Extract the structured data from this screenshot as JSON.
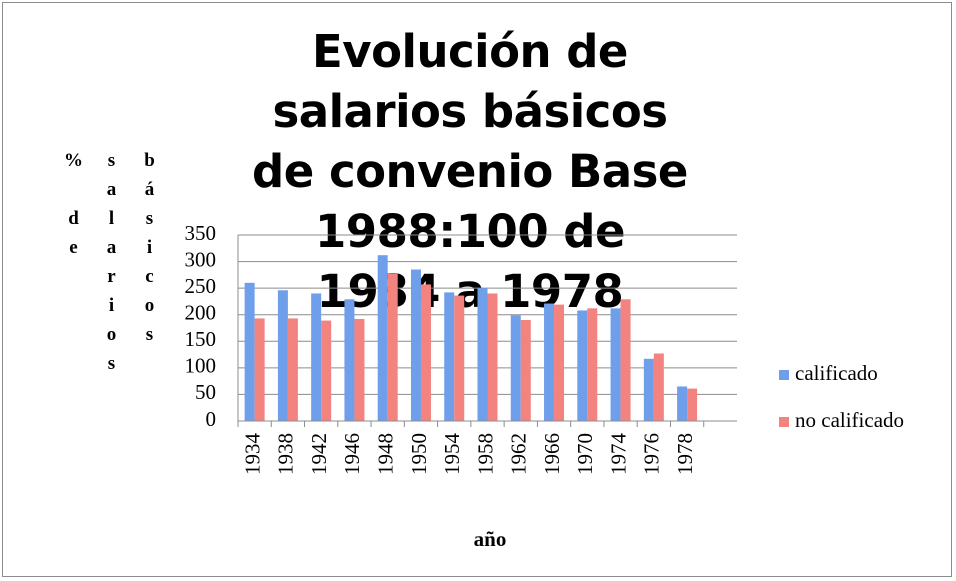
{
  "chart_data": {
    "type": "bar",
    "title": "Evolución de salarios básicos de convenio Base 1988:100 de 1934 a 1978",
    "y_label": "% de salarios básicos",
    "x_label": "año",
    "categories": [
      "1934",
      "1938",
      "1942",
      "1946",
      "1948",
      "1950",
      "1954",
      "1958",
      "1962",
      "1966",
      "1970",
      "1974",
      "1976",
      "1978",
      null
    ],
    "series": [
      {
        "name": "calificado",
        "color": "#6f9eea",
        "values": [
          260,
          246,
          240,
          229,
          312,
          285,
          242,
          250,
          199,
          221,
          208,
          212,
          117,
          65,
          null
        ]
      },
      {
        "name": "no calificado",
        "color": "#f2837f",
        "values": [
          193,
          193,
          189,
          192,
          278,
          257,
          236,
          240,
          190,
          219,
          212,
          229,
          127,
          61,
          null
        ]
      }
    ],
    "ylim": [
      0,
      350
    ],
    "yticks": [
      0,
      50,
      100,
      150,
      200,
      250,
      300,
      350
    ],
    "grid": true,
    "legend": "right"
  }
}
